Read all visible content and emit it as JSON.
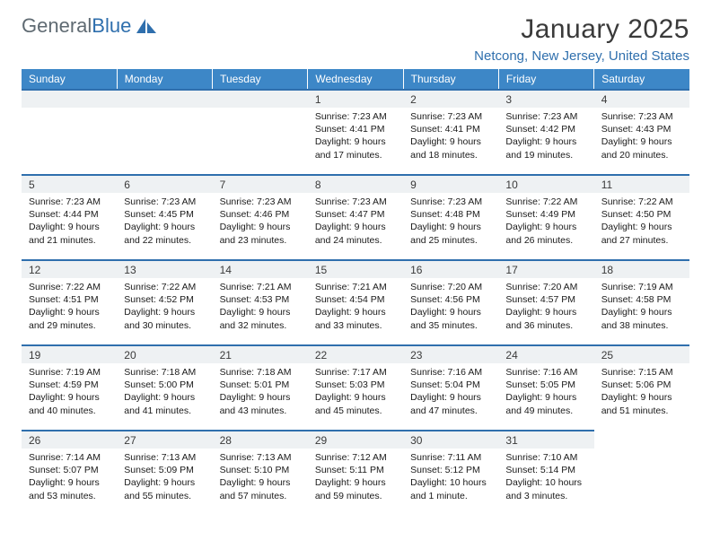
{
  "brand": {
    "name_a": "General",
    "name_b": "Blue"
  },
  "title": "January 2025",
  "location": "Netcong, New Jersey, United States",
  "colors": {
    "header_bg": "#3d87c7",
    "accent": "#2f6fad",
    "daynum_bg": "#eef1f3",
    "text": "#1a1a1a",
    "muted": "#5f6a72"
  },
  "day_headers": [
    "Sunday",
    "Monday",
    "Tuesday",
    "Wednesday",
    "Thursday",
    "Friday",
    "Saturday"
  ],
  "weeks": [
    [
      null,
      null,
      null,
      {
        "n": "1",
        "sr": "7:23 AM",
        "ss": "4:41 PM",
        "dl": "9 hours and 17 minutes."
      },
      {
        "n": "2",
        "sr": "7:23 AM",
        "ss": "4:41 PM",
        "dl": "9 hours and 18 minutes."
      },
      {
        "n": "3",
        "sr": "7:23 AM",
        "ss": "4:42 PM",
        "dl": "9 hours and 19 minutes."
      },
      {
        "n": "4",
        "sr": "7:23 AM",
        "ss": "4:43 PM",
        "dl": "9 hours and 20 minutes."
      }
    ],
    [
      {
        "n": "5",
        "sr": "7:23 AM",
        "ss": "4:44 PM",
        "dl": "9 hours and 21 minutes."
      },
      {
        "n": "6",
        "sr": "7:23 AM",
        "ss": "4:45 PM",
        "dl": "9 hours and 22 minutes."
      },
      {
        "n": "7",
        "sr": "7:23 AM",
        "ss": "4:46 PM",
        "dl": "9 hours and 23 minutes."
      },
      {
        "n": "8",
        "sr": "7:23 AM",
        "ss": "4:47 PM",
        "dl": "9 hours and 24 minutes."
      },
      {
        "n": "9",
        "sr": "7:23 AM",
        "ss": "4:48 PM",
        "dl": "9 hours and 25 minutes."
      },
      {
        "n": "10",
        "sr": "7:22 AM",
        "ss": "4:49 PM",
        "dl": "9 hours and 26 minutes."
      },
      {
        "n": "11",
        "sr": "7:22 AM",
        "ss": "4:50 PM",
        "dl": "9 hours and 27 minutes."
      }
    ],
    [
      {
        "n": "12",
        "sr": "7:22 AM",
        "ss": "4:51 PM",
        "dl": "9 hours and 29 minutes."
      },
      {
        "n": "13",
        "sr": "7:22 AM",
        "ss": "4:52 PM",
        "dl": "9 hours and 30 minutes."
      },
      {
        "n": "14",
        "sr": "7:21 AM",
        "ss": "4:53 PM",
        "dl": "9 hours and 32 minutes."
      },
      {
        "n": "15",
        "sr": "7:21 AM",
        "ss": "4:54 PM",
        "dl": "9 hours and 33 minutes."
      },
      {
        "n": "16",
        "sr": "7:20 AM",
        "ss": "4:56 PM",
        "dl": "9 hours and 35 minutes."
      },
      {
        "n": "17",
        "sr": "7:20 AM",
        "ss": "4:57 PM",
        "dl": "9 hours and 36 minutes."
      },
      {
        "n": "18",
        "sr": "7:19 AM",
        "ss": "4:58 PM",
        "dl": "9 hours and 38 minutes."
      }
    ],
    [
      {
        "n": "19",
        "sr": "7:19 AM",
        "ss": "4:59 PM",
        "dl": "9 hours and 40 minutes."
      },
      {
        "n": "20",
        "sr": "7:18 AM",
        "ss": "5:00 PM",
        "dl": "9 hours and 41 minutes."
      },
      {
        "n": "21",
        "sr": "7:18 AM",
        "ss": "5:01 PM",
        "dl": "9 hours and 43 minutes."
      },
      {
        "n": "22",
        "sr": "7:17 AM",
        "ss": "5:03 PM",
        "dl": "9 hours and 45 minutes."
      },
      {
        "n": "23",
        "sr": "7:16 AM",
        "ss": "5:04 PM",
        "dl": "9 hours and 47 minutes."
      },
      {
        "n": "24",
        "sr": "7:16 AM",
        "ss": "5:05 PM",
        "dl": "9 hours and 49 minutes."
      },
      {
        "n": "25",
        "sr": "7:15 AM",
        "ss": "5:06 PM",
        "dl": "9 hours and 51 minutes."
      }
    ],
    [
      {
        "n": "26",
        "sr": "7:14 AM",
        "ss": "5:07 PM",
        "dl": "9 hours and 53 minutes."
      },
      {
        "n": "27",
        "sr": "7:13 AM",
        "ss": "5:09 PM",
        "dl": "9 hours and 55 minutes."
      },
      {
        "n": "28",
        "sr": "7:13 AM",
        "ss": "5:10 PM",
        "dl": "9 hours and 57 minutes."
      },
      {
        "n": "29",
        "sr": "7:12 AM",
        "ss": "5:11 PM",
        "dl": "9 hours and 59 minutes."
      },
      {
        "n": "30",
        "sr": "7:11 AM",
        "ss": "5:12 PM",
        "dl": "10 hours and 1 minute."
      },
      {
        "n": "31",
        "sr": "7:10 AM",
        "ss": "5:14 PM",
        "dl": "10 hours and 3 minutes."
      },
      null
    ]
  ],
  "labels": {
    "sunrise": "Sunrise:",
    "sunset": "Sunset:",
    "daylight": "Daylight:"
  }
}
